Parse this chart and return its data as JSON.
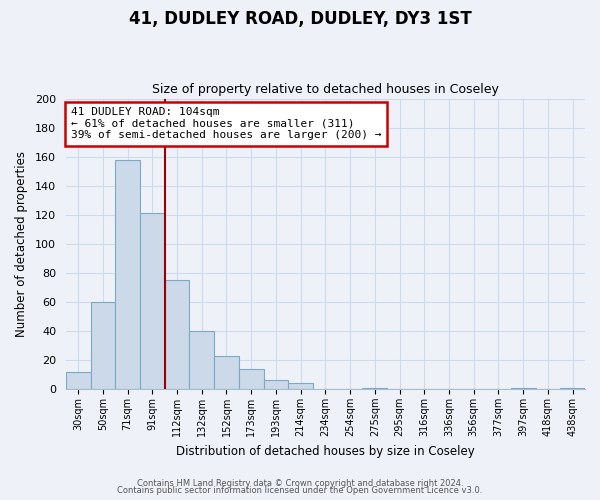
{
  "title": "41, DUDLEY ROAD, DUDLEY, DY3 1ST",
  "subtitle": "Size of property relative to detached houses in Coseley",
  "xlabel": "Distribution of detached houses by size in Coseley",
  "ylabel": "Number of detached properties",
  "bar_labels": [
    "30sqm",
    "50sqm",
    "71sqm",
    "91sqm",
    "112sqm",
    "132sqm",
    "152sqm",
    "173sqm",
    "193sqm",
    "214sqm",
    "234sqm",
    "254sqm",
    "275sqm",
    "295sqm",
    "316sqm",
    "336sqm",
    "356sqm",
    "377sqm",
    "397sqm",
    "418sqm",
    "438sqm"
  ],
  "bar_values": [
    12,
    60,
    158,
    121,
    75,
    40,
    23,
    14,
    6,
    4,
    0,
    0,
    1,
    0,
    0,
    0,
    0,
    0,
    1,
    0,
    1
  ],
  "bar_color": "#ccd9e8",
  "bar_edge_color": "#7aaac8",
  "grid_color": "#ccdaec",
  "vline_index": 3.5,
  "annotation_text_line1": "41 DUDLEY ROAD: 104sqm",
  "annotation_text_line2": "← 61% of detached houses are smaller (311)",
  "annotation_text_line3": "39% of semi-detached houses are larger (200) →",
  "annotation_box_color": "#ffffff",
  "annotation_box_edge_color": "#cc0000",
  "vline_color": "#990000",
  "ylim": [
    0,
    200
  ],
  "yticks": [
    0,
    20,
    40,
    60,
    80,
    100,
    120,
    140,
    160,
    180,
    200
  ],
  "footer_line1": "Contains HM Land Registry data © Crown copyright and database right 2024.",
  "footer_line2": "Contains public sector information licensed under the Open Government Licence v3.0.",
  "background_color": "#eef2f8",
  "figsize": [
    6.0,
    5.0
  ],
  "dpi": 100
}
